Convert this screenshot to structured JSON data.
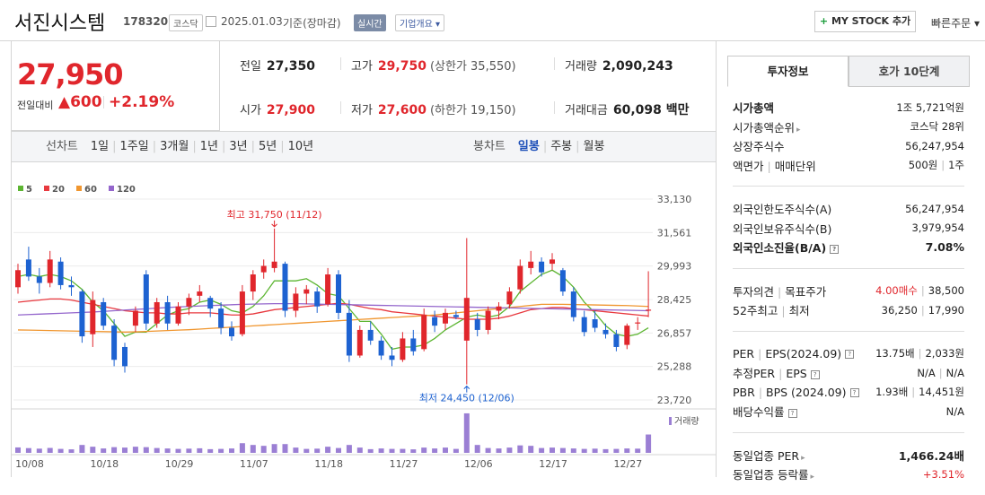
{
  "header": {
    "name": "서진시스템",
    "code": "178320",
    "market": "코스닥",
    "date": "2025.01.03",
    "basis": "기준(장마감)",
    "realtime": "실시간",
    "company": "기업개요",
    "mystock": "MY STOCK 추가",
    "quick": "빠른주문"
  },
  "price": {
    "current": "27,950",
    "change_label": "전일대비",
    "change": "▲600",
    "rate": "+2.19%"
  },
  "summary": [
    {
      "label": "전일",
      "value": "27,350"
    },
    {
      "label": "고가",
      "value": "29,750",
      "note": "(상한가 35,550)",
      "color": "#e0262c"
    },
    {
      "label": "거래량",
      "value": "2,090,243"
    },
    {
      "label": "시가",
      "value": "27,900",
      "color": "#e0262c"
    },
    {
      "label": "저가",
      "value": "27,600",
      "note": "(하한가 19,150)",
      "color": "#e0262c"
    },
    {
      "label": "거래대금",
      "value": "60,098 백만"
    }
  ],
  "toolbar": {
    "line_label": "선차트",
    "periods": [
      "1일",
      "1주일",
      "3개월",
      "1년",
      "3년",
      "5년",
      "10년"
    ],
    "candle_label": "봉차트",
    "candles": [
      "일봉",
      "주봉",
      "월봉"
    ],
    "active_candle": 0
  },
  "chart_data": {
    "type": "candlestick",
    "categories": [
      "10/08",
      null,
      null,
      null,
      null,
      null,
      null,
      "10/18",
      null,
      null,
      null,
      null,
      null,
      null,
      "10/29",
      null,
      null,
      null,
      null,
      null,
      null,
      "11/07",
      null,
      null,
      null,
      null,
      null,
      null,
      "11/18",
      null,
      null,
      null,
      null,
      null,
      null,
      "11/27",
      null,
      null,
      null,
      null,
      null,
      null,
      "12/06",
      null,
      null,
      null,
      null,
      null,
      null,
      "12/17",
      null,
      null,
      null,
      null,
      null,
      null,
      "12/27",
      null,
      null,
      null
    ],
    "open": [
      29000,
      30300,
      29500,
      29200,
      30200,
      29100,
      28800,
      26800,
      28300,
      27200,
      26200,
      27200,
      29600,
      27300,
      28300,
      27300,
      28100,
      28600,
      28500,
      28000,
      27100,
      26800,
      28800,
      29700,
      29900,
      30100,
      27900,
      28700,
      28800,
      28200,
      29600,
      27800,
      25800,
      27000,
      26500,
      25800,
      25600,
      26600,
      26100,
      27600,
      27300,
      27700,
      26500,
      27500,
      27000,
      27900,
      28200,
      28900,
      29900,
      30200,
      30100,
      29800,
      28800,
      27600,
      27500,
      27000,
      26800,
      26300,
      27300,
      27900
    ],
    "high": [
      30100,
      30900,
      29900,
      30700,
      30400,
      29500,
      28900,
      28800,
      28500,
      27500,
      26400,
      28100,
      29800,
      28500,
      28600,
      28300,
      28700,
      29100,
      28600,
      28300,
      27400,
      29100,
      29800,
      30300,
      31750,
      30200,
      29000,
      29100,
      29000,
      29900,
      29800,
      28400,
      27200,
      27400,
      26700,
      26200,
      26900,
      27000,
      28000,
      27900,
      28000,
      27900,
      31300,
      27800,
      28100,
      28300,
      29000,
      30300,
      30700,
      30400,
      30600,
      29900,
      29000,
      27900,
      27900,
      27300,
      27000,
      27300,
      27600,
      29750
    ],
    "low": [
      28700,
      29300,
      28700,
      29000,
      28900,
      28600,
      26400,
      26200,
      27000,
      25300,
      25000,
      26900,
      27000,
      27100,
      27000,
      27200,
      27700,
      28300,
      27600,
      26800,
      26500,
      26700,
      28400,
      29400,
      29700,
      27600,
      27600,
      28200,
      27800,
      28100,
      27500,
      25500,
      25700,
      26300,
      25600,
      25300,
      25500,
      25800,
      26000,
      26900,
      27000,
      27500,
      24450,
      26700,
      26800,
      27500,
      28000,
      28700,
      29600,
      29500,
      29800,
      28600,
      27400,
      26700,
      26900,
      26600,
      26000,
      26100,
      27000,
      27600
    ],
    "close": [
      29800,
      29500,
      29200,
      30300,
      29100,
      29000,
      26700,
      28400,
      27200,
      25600,
      25300,
      27900,
      27300,
      28300,
      27300,
      28100,
      28500,
      28800,
      28000,
      27100,
      26700,
      28800,
      29600,
      30000,
      30200,
      27900,
      28700,
      28900,
      28100,
      29600,
      27800,
      25800,
      27000,
      26500,
      25800,
      25600,
      26600,
      26000,
      27700,
      27200,
      27800,
      27600,
      28500,
      27000,
      27900,
      28100,
      28800,
      30000,
      30200,
      29700,
      30300,
      28800,
      27600,
      26900,
      27100,
      26800,
      26200,
      27200,
      27350,
      27950
    ],
    "up_color": "#e0262c",
    "down_color": "#1d62d1",
    "ylim": [
      23720,
      33130
    ],
    "yticks": [
      {
        "value": 23720,
        "label": "23,720"
      },
      {
        "value": 25288,
        "label": "25,288"
      },
      {
        "value": 26857,
        "label": "26,857"
      },
      {
        "value": 28425,
        "label": "28,425"
      },
      {
        "value": 29993,
        "label": "29,993"
      },
      {
        "value": 31561,
        "label": "31,561"
      },
      {
        "value": 33130,
        "label": "33,130"
      }
    ],
    "grid": true,
    "series": [
      {
        "name": "5",
        "color": "#5cb531",
        "values": [
          29500,
          29600,
          29500,
          29600,
          29500,
          29300,
          28900,
          28300,
          27900,
          27300,
          26700,
          26900,
          26900,
          27300,
          27700,
          27900,
          28000,
          28300,
          28400,
          28200,
          27900,
          27800,
          28100,
          28600,
          29300,
          29300,
          29300,
          29400,
          29100,
          28700,
          28600,
          28000,
          27400,
          27400,
          26800,
          26100,
          26200,
          26200,
          26300,
          26600,
          27000,
          27300,
          27600,
          27700,
          27600,
          27700,
          28100,
          28800,
          29200,
          29600,
          29800,
          29500,
          29000,
          28300,
          27800,
          27200,
          26800,
          26700,
          26800,
          27100
        ]
      },
      {
        "name": "20",
        "color": "#e8393f",
        "values": [
          28300,
          28350,
          28400,
          28450,
          28450,
          28400,
          28300,
          28200,
          28100,
          28000,
          27900,
          27850,
          27800,
          27800,
          27750,
          27750,
          27800,
          27800,
          27800,
          27750,
          27700,
          27700,
          27750,
          27850,
          27950,
          28000,
          28050,
          28100,
          28150,
          28200,
          28250,
          28200,
          28100,
          28000,
          27950,
          27850,
          27800,
          27750,
          27700,
          27650,
          27600,
          27550,
          27500,
          27500,
          27500,
          27550,
          27650,
          27800,
          27950,
          28000,
          28050,
          28050,
          28000,
          27950,
          27900,
          27850,
          27800,
          27750,
          27700,
          27650
        ]
      },
      {
        "name": "60",
        "color": "#f0962f",
        "values": [
          27000,
          26990,
          26980,
          26970,
          26960,
          26950,
          26940,
          26930,
          26920,
          26910,
          26900,
          26910,
          26930,
          26950,
          26970,
          26990,
          27010,
          27040,
          27070,
          27100,
          27130,
          27160,
          27190,
          27220,
          27250,
          27280,
          27310,
          27340,
          27370,
          27400,
          27430,
          27460,
          27490,
          27520,
          27550,
          27580,
          27610,
          27640,
          27670,
          27700,
          27750,
          27800,
          27850,
          27900,
          27950,
          28000,
          28050,
          28100,
          28150,
          28200,
          28200,
          28200,
          28190,
          28180,
          28170,
          28160,
          28150,
          28140,
          28120,
          28100
        ]
      },
      {
        "name": "120",
        "color": "#9466cc",
        "values": [
          27700,
          27720,
          27740,
          27760,
          27780,
          27800,
          27820,
          27840,
          27870,
          27900,
          27930,
          27960,
          27990,
          28020,
          28050,
          28080,
          28100,
          28120,
          28140,
          28160,
          28180,
          28200,
          28210,
          28220,
          28230,
          28230,
          28230,
          28220,
          28210,
          28200,
          28190,
          28180,
          28170,
          28160,
          28150,
          28140,
          28130,
          28120,
          28110,
          28100,
          28090,
          28080,
          28070,
          28060,
          28050,
          28040,
          28030,
          28020,
          28010,
          28000,
          27990,
          27980,
          27970,
          27960,
          27950,
          27940,
          27930,
          27920,
          27910,
          27900
        ]
      }
    ],
    "high_label": "최고 31,750 (11/12)",
    "high_color": "#e0262c",
    "low_label": "최저 24,450 (12/06)",
    "low_color": "#1d62d1",
    "volume_label": "거래량",
    "volume_color": "#9b7fd4",
    "volume_ylim": [
      0,
      4800000
    ],
    "volume": [
      620000,
      540000,
      480000,
      560000,
      450000,
      400000,
      900000,
      700000,
      500000,
      650000,
      600000,
      700000,
      650000,
      550000,
      500000,
      450000,
      480000,
      520000,
      420000,
      450000,
      500000,
      1100000,
      900000,
      800000,
      1000000,
      1000000,
      600000,
      450000,
      480000,
      700000,
      550000,
      900000,
      600000,
      420000,
      500000,
      450000,
      450000,
      400000,
      600000,
      500000,
      600000,
      450000,
      4500000,
      900000,
      550000,
      500000,
      600000,
      850000,
      800000,
      550000,
      600000,
      550000,
      500000,
      450000,
      480000,
      420000,
      450000,
      500000,
      480000,
      2090243
    ]
  },
  "invest_panel": {
    "tabs": [
      "투자정보",
      "호가 10단계"
    ],
    "active_tab": 0,
    "sections": [
      [
        {
          "labels": [
            "시가총액"
          ],
          "values": [
            "1조 5,721억원"
          ],
          "bold_label": true
        },
        {
          "labels": [
            "시가총액순위"
          ],
          "values": [
            "코스닥 28위"
          ],
          "arrow": true
        },
        {
          "labels": [
            "상장주식수"
          ],
          "values": [
            "56,247,954"
          ]
        },
        {
          "labels": [
            "액면가",
            "매매단위"
          ],
          "values": [
            "500원",
            "1주"
          ]
        }
      ],
      [
        {
          "labels": [
            "외국인한도주식수(A)"
          ],
          "values": [
            "56,247,954"
          ]
        },
        {
          "labels": [
            "외국인보유주식수(B)"
          ],
          "values": [
            "3,979,954"
          ]
        },
        {
          "labels": [
            "외국인소진율(B/A)"
          ],
          "values": [
            "7.08%"
          ],
          "bold_label": true,
          "bold_value": true,
          "info": true
        }
      ],
      [
        {
          "labels": [
            "투자의견",
            "목표주가"
          ],
          "values": [
            "4.00매수",
            "38,500"
          ],
          "value_colors": [
            "#e0262c",
            null
          ]
        },
        {
          "labels": [
            "52주최고",
            "최저"
          ],
          "values": [
            "36,250",
            "17,990"
          ]
        }
      ],
      [
        {
          "labels": [
            "PER",
            "EPS(2024.09)"
          ],
          "values": [
            "13.75배",
            "2,033원"
          ],
          "info": true
        },
        {
          "labels": [
            "추정PER",
            "EPS"
          ],
          "values": [
            "N/A",
            "N/A"
          ],
          "info": true
        },
        {
          "labels": [
            "PBR",
            "BPS (2024.09)"
          ],
          "values": [
            "1.93배",
            "14,451원"
          ],
          "info": true
        },
        {
          "labels": [
            "배당수익률"
          ],
          "values": [
            "N/A"
          ],
          "info": true
        }
      ],
      [
        {
          "labels": [
            "동일업종 PER"
          ],
          "values": [
            "1,466.24배"
          ],
          "arrow": true,
          "bold_value": true
        },
        {
          "labels": [
            "동일업종 등락률"
          ],
          "values": [
            "+3.51%"
          ],
          "arrow": true,
          "value_colors": [
            "#e0262c"
          ]
        }
      ]
    ]
  }
}
